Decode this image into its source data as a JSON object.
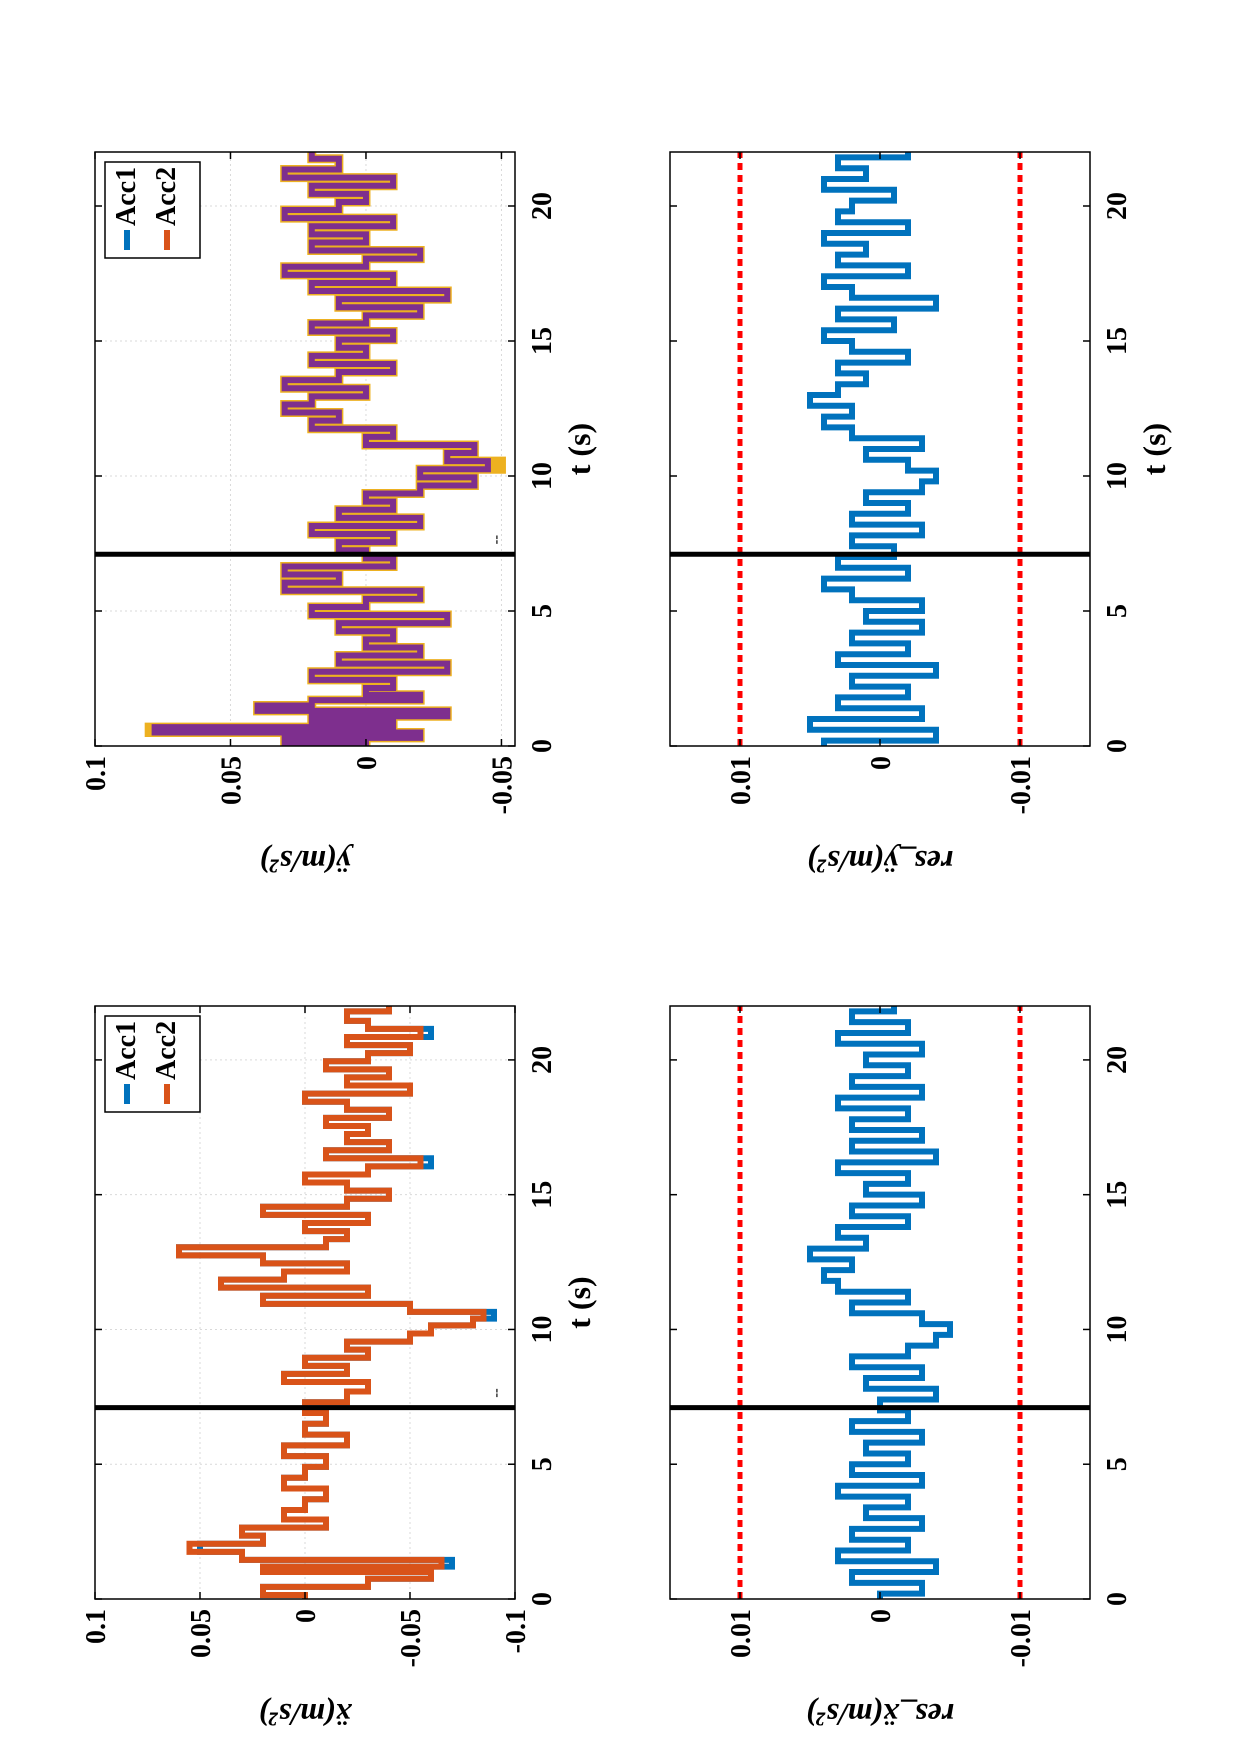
{
  "figure": {
    "rotation": "90deg counter-clockwise (page in landscape)",
    "colors": {
      "acc1": "#0072BD",
      "acc2": "#D95319",
      "acc_y": "#7E2F8E",
      "acc_y_edge": "#EDB120",
      "threshold": "#FF0000",
      "event_line": "#000000",
      "grid": "#d9d9d9"
    }
  },
  "chart_data": [
    {
      "id": "ax-xdd",
      "type": "line",
      "xlabel": "t (s)",
      "ylabel": "ẍ(m/s²)",
      "xlim": [
        0,
        22
      ],
      "ylim": [
        -0.1,
        0.1
      ],
      "xticks": [
        0,
        5,
        10,
        15,
        20
      ],
      "yticks": [
        0.1,
        0.05,
        0,
        -0.05,
        -0.1
      ],
      "xtick_labels": [
        "0",
        "5",
        "10",
        "15",
        "20"
      ],
      "ytick_labels": [
        "0.1",
        "0.05",
        "0",
        "-0.05",
        "-0.1"
      ],
      "grid": true,
      "legend_position": "top-right",
      "event_line_x": 7.1,
      "annotation": "--",
      "series": [
        {
          "name": "Acc1",
          "color": "#0072BD",
          "x": [
            0,
            0.3,
            0.6,
            0.9,
            1.1,
            1.3,
            1.6,
            1.9,
            2.2,
            2.5,
            2.8,
            3.1,
            3.5,
            3.9,
            4.3,
            4.7,
            5.1,
            5.5,
            5.9,
            6.3,
            6.7,
            7.1,
            7.5,
            7.9,
            8.2,
            8.5,
            8.8,
            9.1,
            9.4,
            9.7,
            10.0,
            10.3,
            10.5,
            10.8,
            11.1,
            11.4,
            11.7,
            12.0,
            12.3,
            12.6,
            12.9,
            13.2,
            13.5,
            13.8,
            14.1,
            14.4,
            14.7,
            15.0,
            15.3,
            15.6,
            15.9,
            16.2,
            16.5,
            16.8,
            17.1,
            17.4,
            17.7,
            18.0,
            18.3,
            18.6,
            18.9,
            19.2,
            19.5,
            19.8,
            20.1,
            20.4,
            20.7,
            21.0,
            21.3,
            21.6,
            22.0
          ],
          "y": [
            0.0,
            0.02,
            -0.03,
            -0.06,
            0.02,
            -0.07,
            0.03,
            0.05,
            0.02,
            0.03,
            -0.01,
            0.01,
            0.0,
            -0.01,
            0.01,
            0.0,
            -0.01,
            0.01,
            -0.02,
            0.0,
            -0.01,
            0.0,
            -0.02,
            -0.03,
            0.01,
            -0.02,
            0.0,
            -0.03,
            -0.02,
            -0.05,
            -0.06,
            -0.08,
            -0.09,
            -0.05,
            0.02,
            -0.03,
            0.04,
            0.01,
            -0.02,
            0.02,
            0.06,
            -0.01,
            -0.02,
            0.0,
            -0.03,
            0.02,
            -0.02,
            -0.04,
            -0.02,
            0.0,
            -0.03,
            -0.06,
            -0.01,
            -0.04,
            -0.02,
            -0.03,
            -0.01,
            -0.04,
            -0.02,
            0.0,
            -0.05,
            -0.02,
            -0.04,
            -0.01,
            -0.03,
            -0.05,
            -0.02,
            -0.06,
            -0.03,
            -0.02,
            -0.04
          ]
        },
        {
          "name": "Acc2",
          "color": "#D95319",
          "x": [
            0,
            0.3,
            0.6,
            0.9,
            1.1,
            1.3,
            1.6,
            1.9,
            2.2,
            2.5,
            2.8,
            3.1,
            3.5,
            3.9,
            4.3,
            4.7,
            5.1,
            5.5,
            5.9,
            6.3,
            6.7,
            7.1,
            7.5,
            7.9,
            8.2,
            8.5,
            8.8,
            9.1,
            9.4,
            9.7,
            10.0,
            10.3,
            10.5,
            10.8,
            11.1,
            11.4,
            11.7,
            12.0,
            12.3,
            12.6,
            12.9,
            13.2,
            13.5,
            13.8,
            14.1,
            14.4,
            14.7,
            15.0,
            15.3,
            15.6,
            15.9,
            16.2,
            16.5,
            16.8,
            17.1,
            17.4,
            17.7,
            18.0,
            18.3,
            18.6,
            18.9,
            19.2,
            19.5,
            19.8,
            20.1,
            20.4,
            20.7,
            21.0,
            21.3,
            21.6,
            22.0
          ],
          "y": [
            0.0,
            0.02,
            -0.03,
            -0.06,
            0.02,
            -0.065,
            0.03,
            0.055,
            0.02,
            0.03,
            -0.01,
            0.01,
            0.0,
            -0.01,
            0.01,
            0.0,
            -0.01,
            0.01,
            -0.02,
            0.0,
            -0.01,
            0.0,
            -0.02,
            -0.03,
            0.01,
            -0.02,
            0.0,
            -0.03,
            -0.02,
            -0.05,
            -0.06,
            -0.08,
            -0.085,
            -0.05,
            0.02,
            -0.03,
            0.04,
            0.01,
            -0.02,
            0.02,
            0.06,
            -0.01,
            -0.02,
            0.0,
            -0.03,
            0.02,
            -0.02,
            -0.04,
            -0.02,
            0.0,
            -0.03,
            -0.055,
            -0.01,
            -0.04,
            -0.02,
            -0.03,
            -0.01,
            -0.04,
            -0.02,
            0.0,
            -0.05,
            -0.02,
            -0.04,
            -0.01,
            -0.03,
            -0.05,
            -0.02,
            -0.055,
            -0.03,
            -0.02,
            -0.04
          ]
        }
      ]
    },
    {
      "id": "ax-ydd",
      "type": "line",
      "xlabel": "t (s)",
      "ylabel": "ÿ(m/s²)",
      "xlim": [
        0,
        22
      ],
      "ylim": [
        -0.055,
        0.1
      ],
      "xticks": [
        0,
        5,
        10,
        15,
        20
      ],
      "yticks": [
        0.1,
        0.05,
        0,
        -0.05
      ],
      "xtick_labels": [
        "0",
        "5",
        "10",
        "15",
        "20"
      ],
      "ytick_labels": [
        "0.1",
        "0.05",
        "0",
        "-0.05"
      ],
      "grid": true,
      "legend_position": "top-right",
      "legend_entries": [
        {
          "name": "Acc1",
          "color": "#0072BD"
        },
        {
          "name": "Acc2",
          "color": "#D95319"
        }
      ],
      "event_line_x": 7.1,
      "annotation": "--",
      "series": [
        {
          "name": "",
          "color": "#EDB120",
          "x": [
            0,
            0.2,
            0.4,
            0.6,
            0.8,
            1.0,
            1.2,
            1.4,
            1.6,
            1.8,
            2.0,
            2.3,
            2.6,
            2.9,
            3.2,
            3.5,
            3.8,
            4.1,
            4.4,
            4.7,
            5.0,
            5.3,
            5.6,
            5.9,
            6.2,
            6.5,
            6.8,
            7.1,
            7.4,
            7.7,
            8.0,
            8.3,
            8.6,
            8.9,
            9.2,
            9.5,
            9.8,
            10.1,
            10.4,
            10.7,
            11.0,
            11.3,
            11.6,
            11.9,
            12.2,
            12.5,
            12.8,
            13.1,
            13.4,
            13.7,
            14.0,
            14.3,
            14.6,
            14.9,
            15.2,
            15.5,
            15.8,
            16.1,
            16.4,
            16.7,
            17.0,
            17.3,
            17.6,
            17.9,
            18.2,
            18.5,
            18.8,
            19.1,
            19.4,
            19.7,
            20.0,
            20.3,
            20.6,
            20.9,
            21.2,
            21.5,
            22.0
          ],
          "y": [
            0.0,
            0.03,
            -0.02,
            0.08,
            -0.01,
            0.02,
            -0.03,
            0.04,
            0.02,
            -0.02,
            0.0,
            -0.01,
            0.02,
            -0.03,
            0.01,
            -0.02,
            0.0,
            -0.01,
            0.01,
            -0.03,
            0.02,
            0.0,
            -0.02,
            0.03,
            0.01,
            0.03,
            -0.01,
            0.0,
            0.01,
            -0.01,
            0.02,
            -0.02,
            0.01,
            -0.01,
            0.0,
            -0.02,
            -0.04,
            -0.02,
            -0.05,
            -0.03,
            -0.04,
            0.0,
            -0.01,
            0.02,
            0.01,
            0.03,
            0.02,
            0.0,
            0.03,
            0.01,
            -0.01,
            0.02,
            0.0,
            0.01,
            -0.01,
            0.02,
            0.0,
            -0.02,
            0.01,
            -0.03,
            0.02,
            -0.01,
            0.03,
            0.0,
            -0.02,
            0.02,
            0.0,
            0.02,
            -0.01,
            0.03,
            0.01,
            0.0,
            0.02,
            -0.01,
            0.03,
            0.01,
            0.02
          ]
        },
        {
          "name": "",
          "color": "#7E2F8E",
          "x": [
            0,
            0.2,
            0.4,
            0.6,
            0.8,
            1.0,
            1.2,
            1.4,
            1.6,
            1.8,
            2.0,
            2.3,
            2.6,
            2.9,
            3.2,
            3.5,
            3.8,
            4.1,
            4.4,
            4.7,
            5.0,
            5.3,
            5.6,
            5.9,
            6.2,
            6.5,
            6.8,
            7.1,
            7.4,
            7.7,
            8.0,
            8.3,
            8.6,
            8.9,
            9.2,
            9.5,
            9.8,
            10.1,
            10.4,
            10.7,
            11.0,
            11.3,
            11.6,
            11.9,
            12.2,
            12.5,
            12.8,
            13.1,
            13.4,
            13.7,
            14.0,
            14.3,
            14.6,
            14.9,
            15.2,
            15.5,
            15.8,
            16.1,
            16.4,
            16.7,
            17.0,
            17.3,
            17.6,
            17.9,
            18.2,
            18.5,
            18.8,
            19.1,
            19.4,
            19.7,
            20.0,
            20.3,
            20.6,
            20.9,
            21.2,
            21.5,
            22.0
          ],
          "y": [
            0.0,
            0.03,
            -0.02,
            0.078,
            -0.01,
            0.02,
            -0.03,
            0.04,
            0.02,
            -0.02,
            0.0,
            -0.01,
            0.02,
            -0.03,
            0.01,
            -0.02,
            0.0,
            -0.01,
            0.01,
            -0.03,
            0.02,
            0.0,
            -0.02,
            0.03,
            0.01,
            0.03,
            -0.01,
            0.0,
            0.01,
            -0.01,
            0.02,
            -0.02,
            0.01,
            -0.01,
            0.0,
            -0.02,
            -0.04,
            -0.02,
            -0.045,
            -0.03,
            -0.04,
            0.0,
            -0.01,
            0.02,
            0.01,
            0.03,
            0.02,
            0.0,
            0.03,
            0.01,
            -0.01,
            0.02,
            0.0,
            0.01,
            -0.01,
            0.02,
            0.0,
            -0.02,
            0.01,
            -0.03,
            0.02,
            -0.01,
            0.03,
            0.0,
            -0.02,
            0.02,
            0.0,
            0.02,
            -0.01,
            0.03,
            0.01,
            0.0,
            0.02,
            -0.01,
            0.03,
            0.01,
            0.02
          ]
        }
      ]
    },
    {
      "id": "ax-resx",
      "type": "line",
      "xlabel": "",
      "ylabel": "res_ẍ(m/s²)",
      "xlim": [
        0,
        22
      ],
      "ylim": [
        -0.015,
        0.015
      ],
      "xticks": [
        0,
        5,
        10,
        15,
        20
      ],
      "yticks": [
        0.01,
        0,
        -0.01
      ],
      "xtick_labels": [
        "0",
        "5",
        "10",
        "15",
        "20"
      ],
      "ytick_labels": [
        "0.01",
        "0",
        "-0.01"
      ],
      "grid": false,
      "threshold": [
        0.01,
        -0.01
      ],
      "event_line_x": 7.1,
      "series": [
        {
          "name": "",
          "color": "#0072BD",
          "x": [
            0,
            0.4,
            0.8,
            1.2,
            1.6,
            2.0,
            2.4,
            2.8,
            3.2,
            3.6,
            4.0,
            4.4,
            4.8,
            5.2,
            5.6,
            6.0,
            6.4,
            6.8,
            7.2,
            7.6,
            8.0,
            8.4,
            8.8,
            9.2,
            9.6,
            10.0,
            10.4,
            10.8,
            11.2,
            11.6,
            12.0,
            12.4,
            12.8,
            13.2,
            13.6,
            14.0,
            14.4,
            14.8,
            15.2,
            15.6,
            16.0,
            16.4,
            16.8,
            17.2,
            17.6,
            18.0,
            18.4,
            18.8,
            19.2,
            19.6,
            20.0,
            20.4,
            20.8,
            21.2,
            21.6,
            22.0
          ],
          "y": [
            0.0,
            -0.003,
            0.002,
            -0.004,
            0.003,
            -0.002,
            0.002,
            -0.003,
            0.001,
            -0.002,
            0.003,
            -0.003,
            0.002,
            -0.002,
            0.001,
            -0.003,
            0.002,
            -0.002,
            0.0,
            -0.004,
            0.001,
            -0.003,
            0.002,
            -0.002,
            -0.004,
            -0.005,
            -0.003,
            0.002,
            -0.002,
            0.003,
            0.004,
            0.002,
            0.005,
            0.001,
            0.003,
            -0.002,
            0.002,
            -0.003,
            0.001,
            -0.002,
            0.003,
            -0.004,
            0.002,
            -0.003,
            0.002,
            -0.002,
            0.003,
            -0.003,
            0.002,
            -0.002,
            0.001,
            -0.003,
            0.003,
            -0.002,
            0.002,
            -0.001
          ]
        }
      ]
    },
    {
      "id": "ax-resy",
      "type": "line",
      "xlabel": "t (s)",
      "ylabel": "res_ÿ(m/s²)",
      "xlim": [
        0,
        22
      ],
      "ylim": [
        -0.015,
        0.015
      ],
      "xticks": [
        0,
        5,
        10,
        15,
        20
      ],
      "yticks": [
        0.01,
        0,
        -0.01
      ],
      "xtick_labels": [
        "0",
        "5",
        "10",
        "15",
        "20"
      ],
      "ytick_labels": [
        "0.01",
        "0",
        "-0.01"
      ],
      "grid": false,
      "threshold": [
        0.01,
        -0.01
      ],
      "event_line_x": 7.1,
      "series": [
        {
          "name": "",
          "color": "#0072BD",
          "x": [
            0,
            0.4,
            0.8,
            1.2,
            1.6,
            2.0,
            2.4,
            2.8,
            3.2,
            3.6,
            4.0,
            4.4,
            4.8,
            5.2,
            5.6,
            6.0,
            6.4,
            6.8,
            7.2,
            7.6,
            8.0,
            8.4,
            8.8,
            9.2,
            9.6,
            10.0,
            10.4,
            10.8,
            11.2,
            11.6,
            12.0,
            12.4,
            12.8,
            13.2,
            13.6,
            14.0,
            14.4,
            14.8,
            15.2,
            15.6,
            16.0,
            16.4,
            16.8,
            17.2,
            17.6,
            18.0,
            18.4,
            18.8,
            19.2,
            19.6,
            20.0,
            20.4,
            20.8,
            21.2,
            21.6,
            22.0
          ],
          "y": [
            0.004,
            -0.004,
            0.005,
            -0.003,
            0.003,
            -0.002,
            0.002,
            -0.004,
            0.003,
            -0.002,
            0.002,
            -0.003,
            0.001,
            -0.003,
            0.002,
            0.004,
            -0.002,
            0.003,
            -0.001,
            0.002,
            -0.003,
            0.002,
            -0.002,
            0.001,
            -0.003,
            -0.004,
            -0.002,
            0.001,
            -0.003,
            0.002,
            0.004,
            0.002,
            0.005,
            0.003,
            0.001,
            0.003,
            -0.002,
            0.002,
            0.004,
            -0.001,
            0.003,
            -0.004,
            0.002,
            0.004,
            -0.002,
            0.003,
            0.001,
            0.004,
            -0.002,
            0.003,
            0.002,
            -0.001,
            0.004,
            0.001,
            0.003,
            -0.002
          ]
        }
      ]
    }
  ],
  "labels": {
    "legend_acc1": "Acc1",
    "legend_acc2": "Acc2"
  }
}
